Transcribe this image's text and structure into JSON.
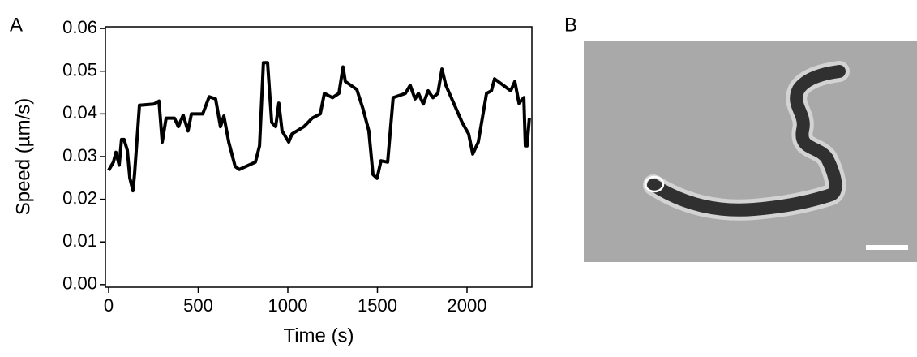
{
  "panels": {
    "a": "A",
    "b": "B"
  },
  "chart_data": {
    "type": "line",
    "x_label": "Time (s)",
    "y_label": "Speed (µm/s)",
    "color": "#000000",
    "x": [
      0,
      27,
      41,
      59,
      72,
      86,
      104,
      118,
      136,
      145,
      172,
      253,
      281,
      299,
      321,
      367,
      389,
      416,
      443,
      462,
      525,
      561,
      597,
      624,
      643,
      670,
      706,
      729,
      819,
      842,
      864,
      887,
      910,
      932,
      950,
      968,
      1005,
      1023,
      1090,
      1136,
      1181,
      1204,
      1249,
      1285,
      1308,
      1321,
      1385,
      1421,
      1452,
      1475,
      1498,
      1520,
      1557,
      1588,
      1656,
      1683,
      1710,
      1729,
      1756,
      1783,
      1810,
      1837,
      1860,
      1882,
      1973,
      2009,
      2032,
      2063,
      2109,
      2136,
      2154,
      2244,
      2267,
      2290,
      2317,
      2326,
      2335,
      2348
    ],
    "values": [
      0.0268,
      0.0287,
      0.031,
      0.028,
      0.034,
      0.034,
      0.0315,
      0.025,
      0.022,
      0.026,
      0.042,
      0.0423,
      0.043,
      0.0334,
      0.039,
      0.039,
      0.037,
      0.0397,
      0.036,
      0.04,
      0.04,
      0.044,
      0.0435,
      0.037,
      0.0395,
      0.0334,
      0.0277,
      0.027,
      0.0287,
      0.0325,
      0.052,
      0.052,
      0.038,
      0.037,
      0.0425,
      0.036,
      0.0334,
      0.0353,
      0.037,
      0.039,
      0.04,
      0.0448,
      0.0438,
      0.0448,
      0.051,
      0.0476,
      0.0457,
      0.041,
      0.036,
      0.0258,
      0.0249,
      0.029,
      0.0287,
      0.0438,
      0.0448,
      0.0467,
      0.0435,
      0.0448,
      0.0423,
      0.0454,
      0.0438,
      0.0448,
      0.0505,
      0.0467,
      0.038,
      0.0353,
      0.0306,
      0.0334,
      0.0448,
      0.0454,
      0.0482,
      0.0454,
      0.0476,
      0.0425,
      0.0438,
      0.0325,
      0.0325,
      0.039
    ],
    "xlim": [
      -18,
      2362
    ],
    "xticks": [
      0,
      500,
      1000,
      1500,
      2000
    ],
    "ylim": [
      -0.0006,
      0.0604
    ],
    "yticks": [
      {
        "value": 0,
        "label": "0.00"
      },
      0.01,
      0.02,
      0.03,
      0.04,
      0.05,
      0.06
    ]
  }
}
